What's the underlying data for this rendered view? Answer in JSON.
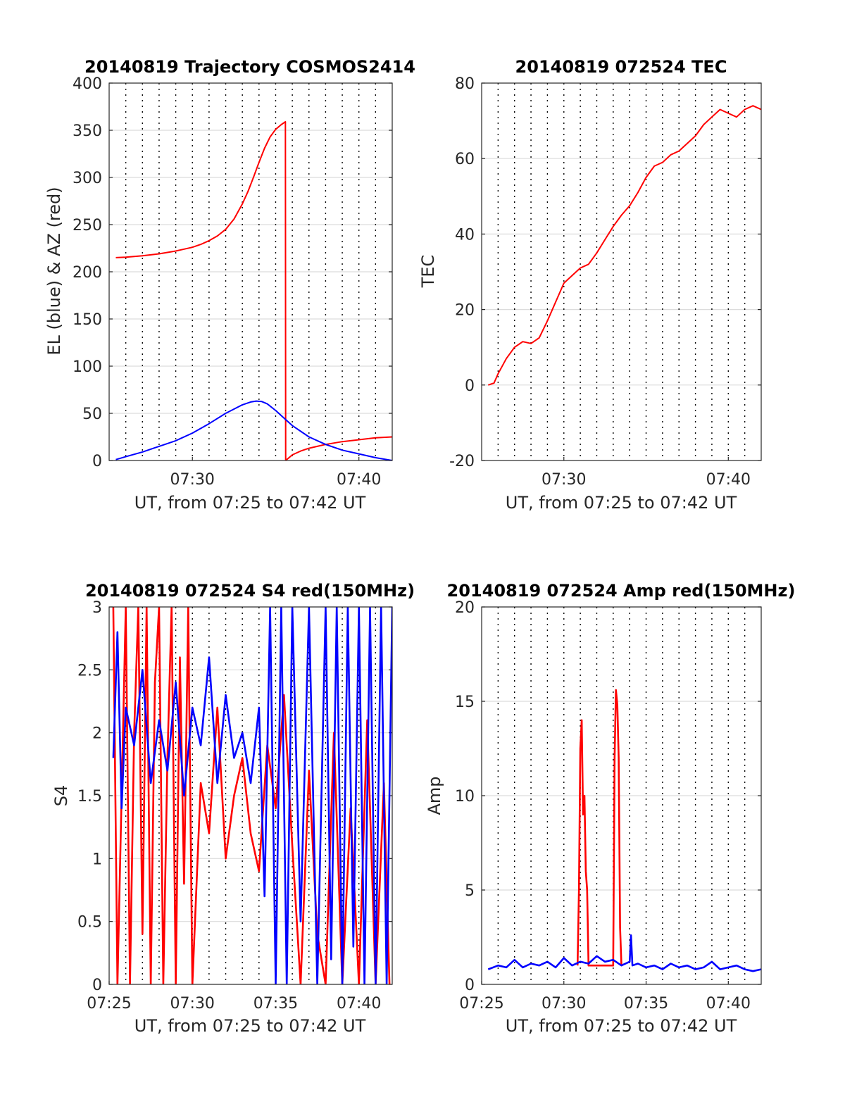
{
  "chart_data": [
    {
      "type": "line",
      "title": "20140819 Trajectory COSMOS2414",
      "xlabel": "UT, from 07:25 to 07:42 UT",
      "ylabel": "EL (blue) & AZ (red)",
      "xlim": [
        "07:25",
        "07:42"
      ],
      "ylim": [
        0,
        400
      ],
      "x_ticks": [
        "07:30",
        "07:40"
      ],
      "y_ticks": [
        "0",
        "50",
        "100",
        "150",
        "200",
        "250",
        "300",
        "350",
        "400"
      ],
      "grid": true,
      "series": [
        {
          "color": "#ff0000",
          "x": [
            "07:25:24",
            "07:26:00",
            "07:27:00",
            "07:28:00",
            "07:29:00",
            "07:30:00",
            "07:30:30",
            "07:31:00",
            "07:31:30",
            "07:32:00",
            "07:32:30",
            "07:33:00",
            "07:33:20",
            "07:33:40",
            "07:34:00",
            "07:34:20",
            "07:34:40",
            "07:35:00",
            "07:35:20",
            "07:35:35",
            "07:35:36",
            "07:36:00",
            "07:36:30",
            "07:37:00",
            "07:37:30",
            "07:38:00",
            "07:39:00",
            "07:40:00",
            "07:41:00",
            "07:42:00"
          ],
          "values": [
            215,
            215.5,
            217,
            219,
            222,
            226,
            229,
            233,
            238,
            245,
            256,
            272,
            285,
            300,
            316,
            331,
            343,
            351,
            356,
            359,
            0,
            6,
            10,
            13,
            15,
            17,
            20,
            22,
            24,
            25
          ]
        },
        {
          "color": "#0000ff",
          "x": [
            "07:25:24",
            "07:26:00",
            "07:27:00",
            "07:28:00",
            "07:29:00",
            "07:30:00",
            "07:31:00",
            "07:32:00",
            "07:33:00",
            "07:33:30",
            "07:33:50",
            "07:34:10",
            "07:34:30",
            "07:35:00",
            "07:35:30",
            "07:36:00",
            "07:37:00",
            "07:38:00",
            "07:39:00",
            "07:40:00",
            "07:41:00",
            "07:42:00"
          ],
          "values": [
            1,
            4,
            9,
            15,
            21,
            29,
            39,
            50,
            59,
            62,
            63,
            62.5,
            60,
            53,
            45,
            37,
            25,
            17,
            11,
            7,
            3,
            0
          ]
        }
      ]
    },
    {
      "type": "line",
      "title": "20140819 072524 TEC",
      "xlabel": "UT, from 07:25 to 07:42 UT",
      "ylabel": "TEC",
      "xlim": [
        "07:25",
        "07:42"
      ],
      "ylim": [
        -20,
        80
      ],
      "x_ticks": [
        "07:30",
        "07:40"
      ],
      "y_ticks": [
        "-20",
        "0",
        "20",
        "40",
        "60",
        "80"
      ],
      "grid": true,
      "series": [
        {
          "color": "#ff0000",
          "x": [
            "07:25:24",
            "07:25:45",
            "07:26:00",
            "07:26:30",
            "07:27:00",
            "07:27:30",
            "07:28:00",
            "07:28:30",
            "07:29:00",
            "07:29:30",
            "07:30:00",
            "07:30:30",
            "07:31:00",
            "07:31:30",
            "07:32:00",
            "07:32:30",
            "07:33:00",
            "07:33:30",
            "07:34:00",
            "07:34:30",
            "07:35:00",
            "07:35:30",
            "07:36:00",
            "07:36:30",
            "07:37:00",
            "07:37:30",
            "07:38:00",
            "07:38:30",
            "07:39:00",
            "07:39:30",
            "07:40:00",
            "07:40:30",
            "07:41:00",
            "07:41:30",
            "07:42:00"
          ],
          "values": [
            0,
            0.5,
            3,
            7,
            10,
            11.5,
            11,
            12.5,
            17,
            22,
            27,
            29,
            31,
            32,
            35,
            38.5,
            42,
            45,
            47.5,
            51,
            55,
            58,
            59,
            61,
            62,
            64,
            66,
            69,
            71,
            73,
            72,
            71,
            73,
            74,
            73
          ]
        }
      ]
    },
    {
      "type": "line",
      "title": "20140819 072524 S4 red(150MHz)",
      "xlabel": "UT, from 07:25 to 07:42 UT",
      "ylabel": "S4",
      "xlim": [
        "07:25",
        "07:42"
      ],
      "ylim": [
        0,
        3
      ],
      "x_ticks": [
        "07:25",
        "07:30",
        "07:35",
        "07:40"
      ],
      "y_ticks": [
        "0",
        "0.5",
        "1",
        "1.5",
        "2",
        "2.5",
        "3"
      ],
      "grid": true,
      "series": [
        {
          "color": "#ff0000",
          "x": [
            "07:25:15",
            "07:25:30",
            "07:25:45",
            "07:26:00",
            "07:26:15",
            "07:26:30",
            "07:26:45",
            "07:27:00",
            "07:27:15",
            "07:27:30",
            "07:27:45",
            "07:28:00",
            "07:28:15",
            "07:28:30",
            "07:28:45",
            "07:29:00",
            "07:29:15",
            "07:29:30",
            "07:29:45",
            "07:30:00",
            "07:30:30",
            "07:31:00",
            "07:31:30",
            "07:32:00",
            "07:32:30",
            "07:33:00",
            "07:33:30",
            "07:34:00",
            "07:34:30",
            "07:35:00",
            "07:35:30",
            "07:36:00",
            "07:36:30",
            "07:37:00",
            "07:37:30",
            "07:38:00",
            "07:38:30",
            "07:39:00",
            "07:39:30",
            "07:40:00",
            "07:40:30",
            "07:41:00",
            "07:41:30",
            "07:41:50"
          ],
          "values": [
            3,
            0,
            1.5,
            3,
            0,
            2,
            3,
            0.4,
            3,
            0,
            2.4,
            3,
            0,
            1.8,
            3,
            0,
            2.6,
            0.8,
            3,
            0,
            1.6,
            1.2,
            2.2,
            1.0,
            1.5,
            1.8,
            1.2,
            0.9,
            1.9,
            1.4,
            2.3,
            1.1,
            0,
            1.7,
            0.4,
            0,
            2.0,
            0,
            1.4,
            0,
            2.1,
            0,
            1.6,
            0
          ]
        },
        {
          "color": "#0000ff",
          "x": [
            "07:25:15",
            "07:25:30",
            "07:25:45",
            "07:26:00",
            "07:26:30",
            "07:27:00",
            "07:27:30",
            "07:28:00",
            "07:28:30",
            "07:29:00",
            "07:29:30",
            "07:30:00",
            "07:30:30",
            "07:31:00",
            "07:31:30",
            "07:32:00",
            "07:32:30",
            "07:33:00",
            "07:33:30",
            "07:34:00",
            "07:34:20",
            "07:34:40",
            "07:35:00",
            "07:35:20",
            "07:35:40",
            "07:36:00",
            "07:36:30",
            "07:37:00",
            "07:37:30",
            "07:38:00",
            "07:38:20",
            "07:38:40",
            "07:39:00",
            "07:39:20",
            "07:39:40",
            "07:40:00",
            "07:40:20",
            "07:40:40",
            "07:41:00",
            "07:41:20",
            "07:41:40",
            "07:42:00"
          ],
          "values": [
            1.8,
            2.8,
            1.4,
            2.2,
            1.9,
            2.5,
            1.6,
            2.1,
            1.7,
            2.4,
            1.5,
            2.2,
            1.9,
            2.6,
            1.6,
            2.3,
            1.8,
            2.0,
            1.6,
            2.2,
            0.7,
            3,
            0,
            3,
            0,
            3,
            0.5,
            3,
            0,
            3,
            0.2,
            3,
            0,
            3,
            0.3,
            3,
            0,
            3,
            0,
            3,
            0,
            3
          ]
        }
      ]
    },
    {
      "type": "line",
      "title": "20140819 072524 Amp red(150MHz)",
      "xlabel": "UT, from 07:25 to 07:42 UT",
      "ylabel": "Amp",
      "xlim": [
        "07:25",
        "07:42"
      ],
      "ylim": [
        0,
        20
      ],
      "x_ticks": [
        "07:25",
        "07:30",
        "07:35",
        "07:40"
      ],
      "y_ticks": [
        "0",
        "5",
        "10",
        "15",
        "20"
      ],
      "grid": true,
      "series": [
        {
          "color": "#ff0000",
          "x": [
            "07:30:50",
            "07:30:55",
            "07:31:00",
            "07:31:05",
            "07:31:10",
            "07:31:15",
            "07:31:20",
            "07:31:25",
            "07:31:30",
            "07:33:00",
            "07:33:05",
            "07:33:10",
            "07:33:15",
            "07:33:20",
            "07:33:25",
            "07:33:30"
          ],
          "values": [
            1,
            5,
            12.5,
            14,
            9,
            10,
            6,
            5,
            1,
            1,
            12,
            15.6,
            14.8,
            12,
            3,
            1
          ]
        },
        {
          "color": "#0000ff",
          "x": [
            "07:25:24",
            "07:26:00",
            "07:26:30",
            "07:27:00",
            "07:27:30",
            "07:28:00",
            "07:28:30",
            "07:29:00",
            "07:29:30",
            "07:30:00",
            "07:30:30",
            "07:31:00",
            "07:31:30",
            "07:32:00",
            "07:32:30",
            "07:33:00",
            "07:33:30",
            "07:34:00",
            "07:34:05",
            "07:34:10",
            "07:34:30",
            "07:35:00",
            "07:35:30",
            "07:36:00",
            "07:36:30",
            "07:37:00",
            "07:37:30",
            "07:38:00",
            "07:38:30",
            "07:39:00",
            "07:39:30",
            "07:40:00",
            "07:40:30",
            "07:41:00",
            "07:41:30",
            "07:42:00"
          ],
          "values": [
            0.8,
            1.0,
            0.9,
            1.3,
            0.9,
            1.1,
            1.0,
            1.2,
            0.9,
            1.4,
            1.0,
            1.2,
            1.1,
            1.5,
            1.2,
            1.3,
            1.0,
            1.2,
            2.6,
            1.0,
            1.1,
            0.9,
            1.0,
            0.8,
            1.1,
            0.9,
            1.0,
            0.8,
            0.9,
            1.2,
            0.8,
            0.9,
            1.0,
            0.8,
            0.7,
            0.8
          ]
        }
      ]
    }
  ]
}
